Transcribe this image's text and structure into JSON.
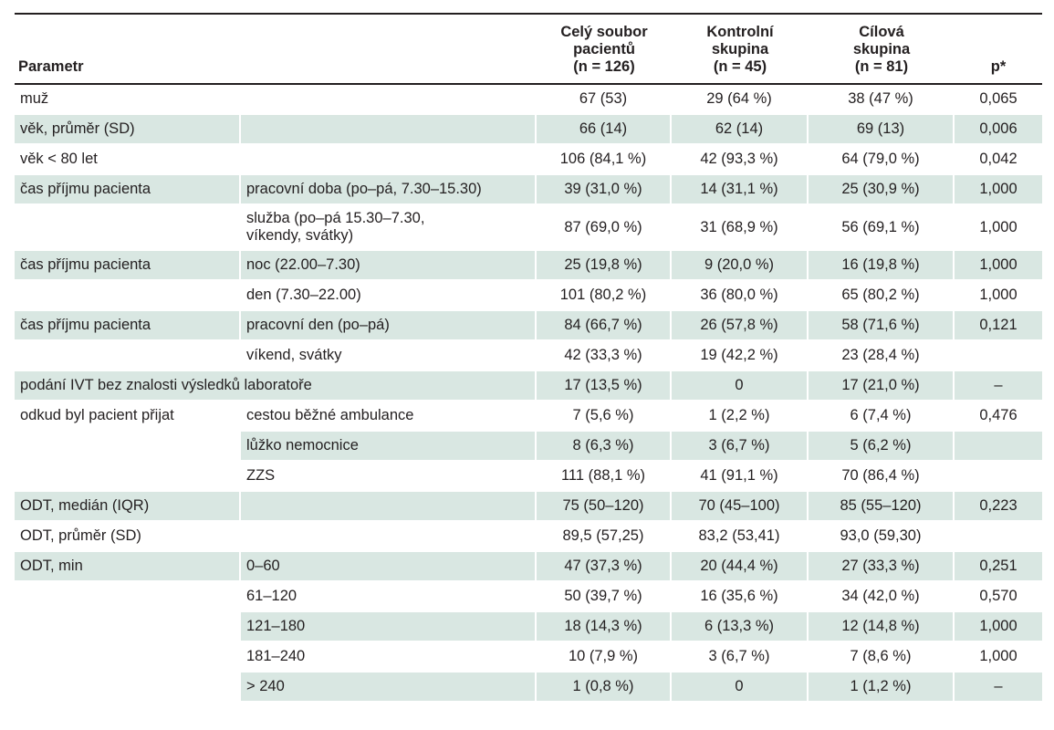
{
  "table": {
    "headers": [
      {
        "key": "param",
        "lines": [
          "Parametr"
        ]
      },
      {
        "key": "sub",
        "lines": [
          ""
        ]
      },
      {
        "key": "all",
        "lines": [
          "Celý soubor",
          "pacientů",
          "(n = 126)"
        ]
      },
      {
        "key": "ctrl",
        "lines": [
          "Kontrolní",
          "skupina",
          "(n = 45)"
        ]
      },
      {
        "key": "target",
        "lines": [
          "Cílová",
          "skupina",
          "(n = 81)"
        ]
      },
      {
        "key": "p",
        "lines": [
          "p*"
        ]
      }
    ],
    "rows": [
      {
        "param": "muž",
        "sub": "",
        "all": "67 (53)",
        "ctrl": "29 (64 %)",
        "target": "38 (47 %)",
        "p": "0,065"
      },
      {
        "param": "věk, průměr (SD)",
        "sub": "",
        "all": "66 (14)",
        "ctrl": "62 (14)",
        "target": "69 (13)",
        "p": "0,006"
      },
      {
        "param": "věk < 80 let",
        "sub": "",
        "all": "106 (84,1 %)",
        "ctrl": "42 (93,3 %)",
        "target": "64 (79,0 %)",
        "p": "0,042"
      },
      {
        "param": "čas příjmu pacienta",
        "sub": "pracovní doba (po–pá, 7.30–15.30)",
        "all": "39 (31,0 %)",
        "ctrl": "14 (31,1 %)",
        "target": "25 (30,9 %)",
        "p": "1,000"
      },
      {
        "param": "",
        "sub": "služba (po–pá 15.30–7.30, víkendy, svátky)",
        "sub_lines": [
          "služba (po–pá 15.30–7.30,",
          "víkendy, svátky)"
        ],
        "all": "87 (69,0 %)",
        "ctrl": "31 (68,9 %)",
        "target": "56 (69,1 %)",
        "p": "1,000"
      },
      {
        "param": "čas příjmu pacienta",
        "sub": "noc (22.00–7.30)",
        "all": "25 (19,8 %)",
        "ctrl": "9 (20,0 %)",
        "target": "16 (19,8 %)",
        "p": "1,000"
      },
      {
        "param": "",
        "sub": "den (7.30–22.00)",
        "all": "101 (80,2 %)",
        "ctrl": "36 (80,0 %)",
        "target": "65 (80,2 %)",
        "p": "1,000"
      },
      {
        "param": "čas příjmu pacienta",
        "sub": "pracovní den (po–pá)",
        "all": "84 (66,7 %)",
        "ctrl": "26 (57,8 %)",
        "target": "58 (71,6 %)",
        "p": "0,121"
      },
      {
        "param": "",
        "sub": "víkend, svátky",
        "all": "42 (33,3 %)",
        "ctrl": "19 (42,2 %)",
        "target": "23 (28,4 %)",
        "p": ""
      },
      {
        "param": "podání IVT bez znalosti výsledků laboratoře",
        "sub": "",
        "all": "17 (13,5 %)",
        "ctrl": "0",
        "target": "17 (21,0 %)",
        "p": "–"
      },
      {
        "param": "odkud byl pacient přijat",
        "sub": "cestou běžné ambulance",
        "all": "7 (5,6 %)",
        "ctrl": "1 (2,2 %)",
        "target": "6 (7,4 %)",
        "p": "0,476"
      },
      {
        "param": "",
        "sub": "lůžko nemocnice",
        "all": "8 (6,3 %)",
        "ctrl": "3 (6,7 %)",
        "target": "5 (6,2 %)",
        "p": ""
      },
      {
        "param": "",
        "sub": "ZZS",
        "all": "111 (88,1 %)",
        "ctrl": "41 (91,1 %)",
        "target": "70 (86,4 %)",
        "p": ""
      },
      {
        "param": "ODT, medián (IQR)",
        "sub": "",
        "all": "75 (50–120)",
        "ctrl": "70 (45–100)",
        "target": "85 (55–120)",
        "p": "0,223"
      },
      {
        "param": "ODT, průměr (SD)",
        "sub": "",
        "all": "89,5 (57,25)",
        "ctrl": "83,2 (53,41)",
        "target": "93,0 (59,30)",
        "p": ""
      },
      {
        "param": "ODT, min",
        "sub": "0–60",
        "all": "47 (37,3 %)",
        "ctrl": "20 (44,4 %)",
        "target": "27 (33,3 %)",
        "p": "0,251"
      },
      {
        "param": "",
        "sub": "61–120",
        "all": "50 (39,7 %)",
        "ctrl": "16 (35,6 %)",
        "target": "34 (42,0 %)",
        "p": "0,570"
      },
      {
        "param": "",
        "sub": "121–180",
        "all": "18 (14,3 %)",
        "ctrl": "6 (13,3 %)",
        "target": "12 (14,8 %)",
        "p": "1,000"
      },
      {
        "param": "",
        "sub": "181–240",
        "all": "10 (7,9 %)",
        "ctrl": "3 (6,7 %)",
        "target": "7 (8,6 %)",
        "p": "1,000"
      },
      {
        "param": "",
        "sub": "> 240",
        "all": "1 (0,8 %)",
        "ctrl": "0",
        "target": "1 (1,2 %)",
        "p": "–"
      }
    ],
    "shading": {
      "shade_color": "#d9e7e2",
      "rule_color": "#231f20"
    }
  }
}
